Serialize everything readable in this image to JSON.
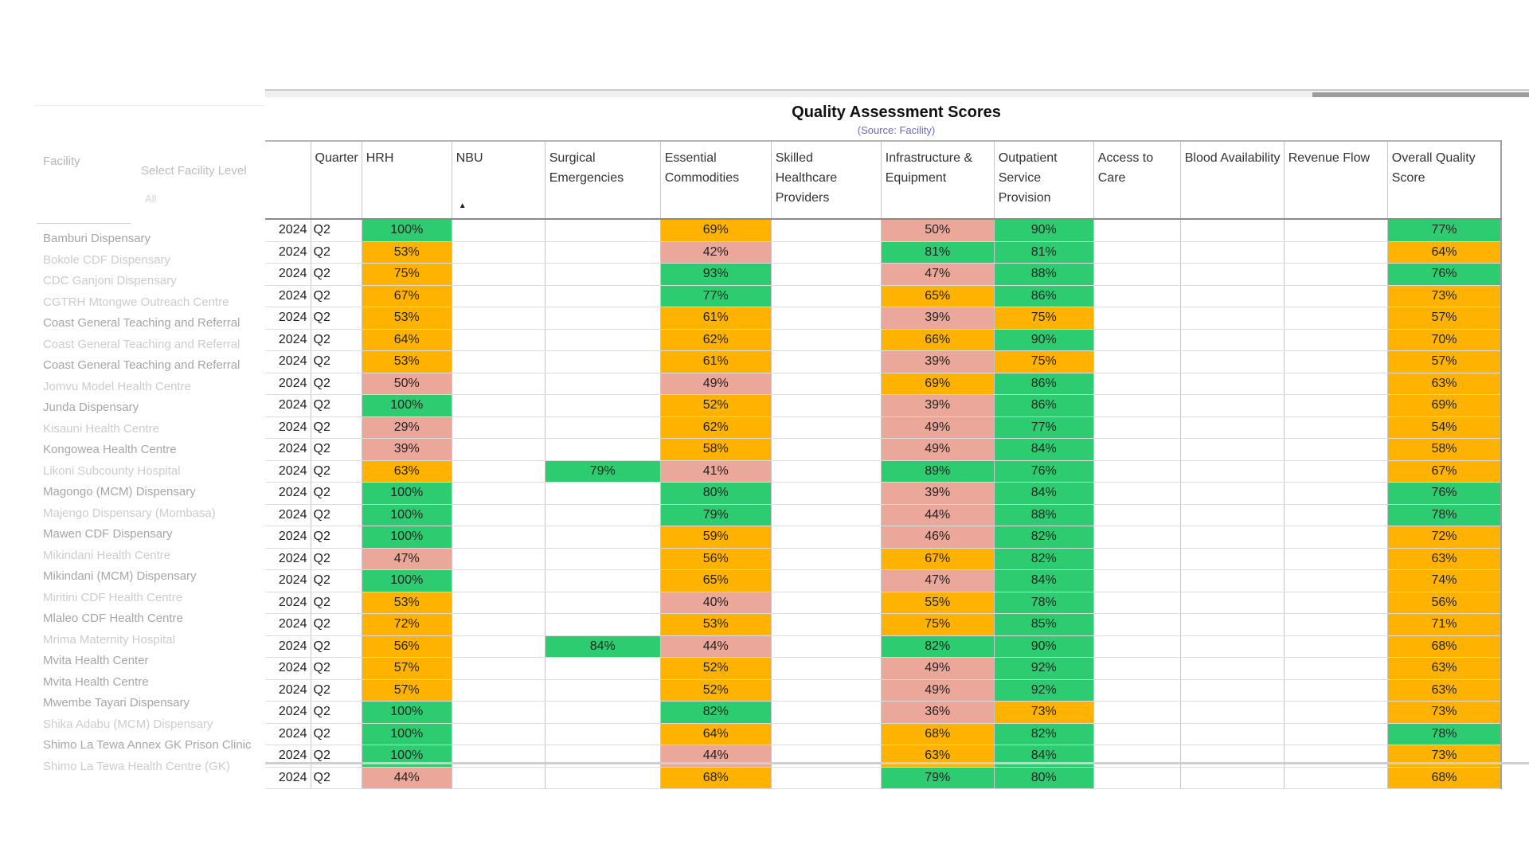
{
  "filters": {
    "facility_label": "Facility",
    "level_placeholder": "Select Facility Level",
    "level_sub": "All"
  },
  "facilities": [
    {
      "name": "Bamburi Dispensary",
      "faint": false
    },
    {
      "name": "Bokole CDF Dispensary",
      "faint": true
    },
    {
      "name": "CDC Ganjoni Dispensary",
      "faint": true
    },
    {
      "name": "CGTRH Mtongwe Outreach Centre",
      "faint": true
    },
    {
      "name": "Coast General Teaching and Referral",
      "faint": false
    },
    {
      "name": "Coast General Teaching and Referral",
      "faint": true
    },
    {
      "name": "Coast General Teaching and Referral",
      "faint": false
    },
    {
      "name": "Jomvu Model Health Centre",
      "faint": true
    },
    {
      "name": "Junda Dispensary",
      "faint": false
    },
    {
      "name": "Kisauni Health Centre",
      "faint": true
    },
    {
      "name": "Kongowea Health Centre",
      "faint": false
    },
    {
      "name": "Likoni Subcounty Hospital",
      "faint": true
    },
    {
      "name": "Magongo (MCM) Dispensary",
      "faint": false
    },
    {
      "name": "Majengo Dispensary (Mombasa)",
      "faint": true
    },
    {
      "name": "Mawen CDF Dispensary",
      "faint": false
    },
    {
      "name": "Mikindani Health Centre",
      "faint": true
    },
    {
      "name": "Mikindani (MCM) Dispensary",
      "faint": false
    },
    {
      "name": "Miritini CDF Health Centre",
      "faint": true
    },
    {
      "name": "Mlaleo CDF Health Centre",
      "faint": false
    },
    {
      "name": "Mrima Maternity Hospital",
      "faint": true
    },
    {
      "name": "Mvita Health Center",
      "faint": false
    },
    {
      "name": "Mvita Health Centre",
      "faint": false
    },
    {
      "name": "Mwembe Tayari Dispensary",
      "faint": false
    },
    {
      "name": "Shika Adabu (MCM) Dispensary",
      "faint": true
    },
    {
      "name": "Shimo La Tewa Annex GK Prison Clinic",
      "faint": false
    },
    {
      "name": "Shimo La Tewa Health Centre (GK)",
      "faint": true
    }
  ],
  "report": {
    "title": "Quality Assessment Scores",
    "subtitle": "(Source: Facility)"
  },
  "columns": [
    "",
    "Quarter",
    "HRH",
    "NBU",
    "Surgical Emergencies",
    "Essential Commodities",
    "Skilled Healthcare Providers",
    "Infrastructure & Equipment",
    "Outpatient Service Provision",
    "Access to Care",
    "Blood Availability",
    "Revenue Flow",
    "Overall Quality Score"
  ],
  "colors": {
    "high": "#2ecc71",
    "mid": "#ffb300",
    "low": "#eba89a"
  },
  "rows": [
    {
      "year": "2024",
      "quarter": "Q2",
      "hrh": {
        "v": "100%",
        "c": "high"
      },
      "nbu": null,
      "surg": null,
      "ess": {
        "v": "69%",
        "c": "mid"
      },
      "skilled": null,
      "infra": {
        "v": "50%",
        "c": "low"
      },
      "op": {
        "v": "90%",
        "c": "high"
      },
      "access": null,
      "blood": null,
      "rev": null,
      "overall": {
        "v": "77%",
        "c": "high"
      }
    },
    {
      "year": "2024",
      "quarter": "Q2",
      "hrh": {
        "v": "53%",
        "c": "mid"
      },
      "nbu": null,
      "surg": null,
      "ess": {
        "v": "42%",
        "c": "low"
      },
      "skilled": null,
      "infra": {
        "v": "81%",
        "c": "high"
      },
      "op": {
        "v": "81%",
        "c": "high"
      },
      "access": null,
      "blood": null,
      "rev": null,
      "overall": {
        "v": "64%",
        "c": "mid"
      }
    },
    {
      "year": "2024",
      "quarter": "Q2",
      "hrh": {
        "v": "75%",
        "c": "mid"
      },
      "nbu": null,
      "surg": null,
      "ess": {
        "v": "93%",
        "c": "high"
      },
      "skilled": null,
      "infra": {
        "v": "47%",
        "c": "low"
      },
      "op": {
        "v": "88%",
        "c": "high"
      },
      "access": null,
      "blood": null,
      "rev": null,
      "overall": {
        "v": "76%",
        "c": "high"
      }
    },
    {
      "year": "2024",
      "quarter": "Q2",
      "hrh": {
        "v": "67%",
        "c": "mid"
      },
      "nbu": null,
      "surg": null,
      "ess": {
        "v": "77%",
        "c": "high"
      },
      "skilled": null,
      "infra": {
        "v": "65%",
        "c": "mid"
      },
      "op": {
        "v": "86%",
        "c": "high"
      },
      "access": null,
      "blood": null,
      "rev": null,
      "overall": {
        "v": "73%",
        "c": "mid"
      }
    },
    {
      "year": "2024",
      "quarter": "Q2",
      "hrh": {
        "v": "53%",
        "c": "mid"
      },
      "nbu": null,
      "surg": null,
      "ess": {
        "v": "61%",
        "c": "mid"
      },
      "skilled": null,
      "infra": {
        "v": "39%",
        "c": "low"
      },
      "op": {
        "v": "75%",
        "c": "mid"
      },
      "access": null,
      "blood": null,
      "rev": null,
      "overall": {
        "v": "57%",
        "c": "mid"
      }
    },
    {
      "year": "2024",
      "quarter": "Q2",
      "hrh": {
        "v": "64%",
        "c": "mid"
      },
      "nbu": null,
      "surg": null,
      "ess": {
        "v": "62%",
        "c": "mid"
      },
      "skilled": null,
      "infra": {
        "v": "66%",
        "c": "mid"
      },
      "op": {
        "v": "90%",
        "c": "high"
      },
      "access": null,
      "blood": null,
      "rev": null,
      "overall": {
        "v": "70%",
        "c": "mid"
      }
    },
    {
      "year": "2024",
      "quarter": "Q2",
      "hrh": {
        "v": "53%",
        "c": "mid"
      },
      "nbu": null,
      "surg": null,
      "ess": {
        "v": "61%",
        "c": "mid"
      },
      "skilled": null,
      "infra": {
        "v": "39%",
        "c": "low"
      },
      "op": {
        "v": "75%",
        "c": "mid"
      },
      "access": null,
      "blood": null,
      "rev": null,
      "overall": {
        "v": "57%",
        "c": "mid"
      }
    },
    {
      "year": "2024",
      "quarter": "Q2",
      "hrh": {
        "v": "50%",
        "c": "low"
      },
      "nbu": null,
      "surg": null,
      "ess": {
        "v": "49%",
        "c": "low"
      },
      "skilled": null,
      "infra": {
        "v": "69%",
        "c": "mid"
      },
      "op": {
        "v": "86%",
        "c": "high"
      },
      "access": null,
      "blood": null,
      "rev": null,
      "overall": {
        "v": "63%",
        "c": "mid"
      }
    },
    {
      "year": "2024",
      "quarter": "Q2",
      "hrh": {
        "v": "100%",
        "c": "high"
      },
      "nbu": null,
      "surg": null,
      "ess": {
        "v": "52%",
        "c": "mid"
      },
      "skilled": null,
      "infra": {
        "v": "39%",
        "c": "low"
      },
      "op": {
        "v": "86%",
        "c": "high"
      },
      "access": null,
      "blood": null,
      "rev": null,
      "overall": {
        "v": "69%",
        "c": "mid"
      }
    },
    {
      "year": "2024",
      "quarter": "Q2",
      "hrh": {
        "v": "29%",
        "c": "low"
      },
      "nbu": null,
      "surg": null,
      "ess": {
        "v": "62%",
        "c": "mid"
      },
      "skilled": null,
      "infra": {
        "v": "49%",
        "c": "low"
      },
      "op": {
        "v": "77%",
        "c": "high"
      },
      "access": null,
      "blood": null,
      "rev": null,
      "overall": {
        "v": "54%",
        "c": "mid"
      }
    },
    {
      "year": "2024",
      "quarter": "Q2",
      "hrh": {
        "v": "39%",
        "c": "low"
      },
      "nbu": null,
      "surg": null,
      "ess": {
        "v": "58%",
        "c": "mid"
      },
      "skilled": null,
      "infra": {
        "v": "49%",
        "c": "low"
      },
      "op": {
        "v": "84%",
        "c": "high"
      },
      "access": null,
      "blood": null,
      "rev": null,
      "overall": {
        "v": "58%",
        "c": "mid"
      }
    },
    {
      "year": "2024",
      "quarter": "Q2",
      "hrh": {
        "v": "63%",
        "c": "mid"
      },
      "nbu": null,
      "surg": {
        "v": "79%",
        "c": "high"
      },
      "ess": {
        "v": "41%",
        "c": "low"
      },
      "skilled": null,
      "infra": {
        "v": "89%",
        "c": "high"
      },
      "op": {
        "v": "76%",
        "c": "high"
      },
      "access": null,
      "blood": null,
      "rev": null,
      "overall": {
        "v": "67%",
        "c": "mid"
      }
    },
    {
      "year": "2024",
      "quarter": "Q2",
      "hrh": {
        "v": "100%",
        "c": "high"
      },
      "nbu": null,
      "surg": null,
      "ess": {
        "v": "80%",
        "c": "high"
      },
      "skilled": null,
      "infra": {
        "v": "39%",
        "c": "low"
      },
      "op": {
        "v": "84%",
        "c": "high"
      },
      "access": null,
      "blood": null,
      "rev": null,
      "overall": {
        "v": "76%",
        "c": "high"
      }
    },
    {
      "year": "2024",
      "quarter": "Q2",
      "hrh": {
        "v": "100%",
        "c": "high"
      },
      "nbu": null,
      "surg": null,
      "ess": {
        "v": "79%",
        "c": "high"
      },
      "skilled": null,
      "infra": {
        "v": "44%",
        "c": "low"
      },
      "op": {
        "v": "88%",
        "c": "high"
      },
      "access": null,
      "blood": null,
      "rev": null,
      "overall": {
        "v": "78%",
        "c": "high"
      }
    },
    {
      "year": "2024",
      "quarter": "Q2",
      "hrh": {
        "v": "100%",
        "c": "high"
      },
      "nbu": null,
      "surg": null,
      "ess": {
        "v": "59%",
        "c": "mid"
      },
      "skilled": null,
      "infra": {
        "v": "46%",
        "c": "low"
      },
      "op": {
        "v": "82%",
        "c": "high"
      },
      "access": null,
      "blood": null,
      "rev": null,
      "overall": {
        "v": "72%",
        "c": "mid"
      }
    },
    {
      "year": "2024",
      "quarter": "Q2",
      "hrh": {
        "v": "47%",
        "c": "low"
      },
      "nbu": null,
      "surg": null,
      "ess": {
        "v": "56%",
        "c": "mid"
      },
      "skilled": null,
      "infra": {
        "v": "67%",
        "c": "mid"
      },
      "op": {
        "v": "82%",
        "c": "high"
      },
      "access": null,
      "blood": null,
      "rev": null,
      "overall": {
        "v": "63%",
        "c": "mid"
      }
    },
    {
      "year": "2024",
      "quarter": "Q2",
      "hrh": {
        "v": "100%",
        "c": "high"
      },
      "nbu": null,
      "surg": null,
      "ess": {
        "v": "65%",
        "c": "mid"
      },
      "skilled": null,
      "infra": {
        "v": "47%",
        "c": "low"
      },
      "op": {
        "v": "84%",
        "c": "high"
      },
      "access": null,
      "blood": null,
      "rev": null,
      "overall": {
        "v": "74%",
        "c": "mid"
      }
    },
    {
      "year": "2024",
      "quarter": "Q2",
      "hrh": {
        "v": "53%",
        "c": "mid"
      },
      "nbu": null,
      "surg": null,
      "ess": {
        "v": "40%",
        "c": "low"
      },
      "skilled": null,
      "infra": {
        "v": "55%",
        "c": "mid"
      },
      "op": {
        "v": "78%",
        "c": "high"
      },
      "access": null,
      "blood": null,
      "rev": null,
      "overall": {
        "v": "56%",
        "c": "mid"
      }
    },
    {
      "year": "2024",
      "quarter": "Q2",
      "hrh": {
        "v": "72%",
        "c": "mid"
      },
      "nbu": null,
      "surg": null,
      "ess": {
        "v": "53%",
        "c": "mid"
      },
      "skilled": null,
      "infra": {
        "v": "75%",
        "c": "mid"
      },
      "op": {
        "v": "85%",
        "c": "high"
      },
      "access": null,
      "blood": null,
      "rev": null,
      "overall": {
        "v": "71%",
        "c": "mid"
      }
    },
    {
      "year": "2024",
      "quarter": "Q2",
      "hrh": {
        "v": "56%",
        "c": "mid"
      },
      "nbu": null,
      "surg": {
        "v": "84%",
        "c": "high"
      },
      "ess": {
        "v": "44%",
        "c": "low"
      },
      "skilled": null,
      "infra": {
        "v": "82%",
        "c": "high"
      },
      "op": {
        "v": "90%",
        "c": "high"
      },
      "access": null,
      "blood": null,
      "rev": null,
      "overall": {
        "v": "68%",
        "c": "mid"
      }
    },
    {
      "year": "2024",
      "quarter": "Q2",
      "hrh": {
        "v": "57%",
        "c": "mid"
      },
      "nbu": null,
      "surg": null,
      "ess": {
        "v": "52%",
        "c": "mid"
      },
      "skilled": null,
      "infra": {
        "v": "49%",
        "c": "low"
      },
      "op": {
        "v": "92%",
        "c": "high"
      },
      "access": null,
      "blood": null,
      "rev": null,
      "overall": {
        "v": "63%",
        "c": "mid"
      }
    },
    {
      "year": "2024",
      "quarter": "Q2",
      "hrh": {
        "v": "57%",
        "c": "mid"
      },
      "nbu": null,
      "surg": null,
      "ess": {
        "v": "52%",
        "c": "mid"
      },
      "skilled": null,
      "infra": {
        "v": "49%",
        "c": "low"
      },
      "op": {
        "v": "92%",
        "c": "high"
      },
      "access": null,
      "blood": null,
      "rev": null,
      "overall": {
        "v": "63%",
        "c": "mid"
      }
    },
    {
      "year": "2024",
      "quarter": "Q2",
      "hrh": {
        "v": "100%",
        "c": "high"
      },
      "nbu": null,
      "surg": null,
      "ess": {
        "v": "82%",
        "c": "high"
      },
      "skilled": null,
      "infra": {
        "v": "36%",
        "c": "low"
      },
      "op": {
        "v": "73%",
        "c": "mid"
      },
      "access": null,
      "blood": null,
      "rev": null,
      "overall": {
        "v": "73%",
        "c": "mid"
      }
    },
    {
      "year": "2024",
      "quarter": "Q2",
      "hrh": {
        "v": "100%",
        "c": "high"
      },
      "nbu": null,
      "surg": null,
      "ess": {
        "v": "64%",
        "c": "mid"
      },
      "skilled": null,
      "infra": {
        "v": "68%",
        "c": "mid"
      },
      "op": {
        "v": "82%",
        "c": "high"
      },
      "access": null,
      "blood": null,
      "rev": null,
      "overall": {
        "v": "78%",
        "c": "high"
      }
    },
    {
      "year": "2024",
      "quarter": "Q2",
      "hrh": {
        "v": "100%",
        "c": "high"
      },
      "nbu": null,
      "surg": null,
      "ess": {
        "v": "44%",
        "c": "low"
      },
      "skilled": null,
      "infra": {
        "v": "63%",
        "c": "mid"
      },
      "op": {
        "v": "84%",
        "c": "high"
      },
      "access": null,
      "blood": null,
      "rev": null,
      "overall": {
        "v": "73%",
        "c": "mid"
      }
    },
    {
      "year": "2024",
      "quarter": "Q2",
      "hrh": {
        "v": "44%",
        "c": "low"
      },
      "nbu": null,
      "surg": null,
      "ess": {
        "v": "68%",
        "c": "mid"
      },
      "skilled": null,
      "infra": {
        "v": "79%",
        "c": "high"
      },
      "op": {
        "v": "80%",
        "c": "high"
      },
      "access": null,
      "blood": null,
      "rev": null,
      "overall": {
        "v": "68%",
        "c": "mid"
      }
    }
  ]
}
